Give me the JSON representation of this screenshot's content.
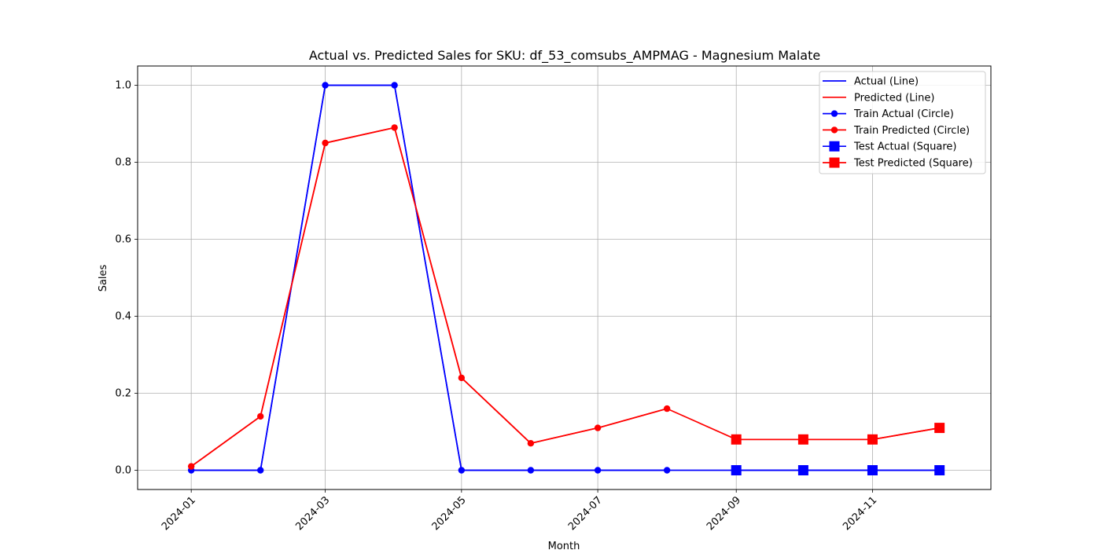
{
  "chart_data": {
    "type": "line",
    "title": "Actual vs. Predicted Sales for SKU: df_53_comsubs_AMPMAG - Magnesium Malate",
    "xlabel": "Month",
    "ylabel": "Sales",
    "x": [
      "2024-01",
      "2024-02",
      "2024-03",
      "2024-04",
      "2024-05",
      "2024-06",
      "2024-07",
      "2024-08",
      "2024-09",
      "2024-10",
      "2024-11",
      "2024-12"
    ],
    "x_ticks": [
      "2024-01",
      "2024-03",
      "2024-05",
      "2024-07",
      "2024-09",
      "2024-11"
    ],
    "y_ticks": [
      "0.0",
      "0.2",
      "0.4",
      "0.6",
      "0.8",
      "1.0"
    ],
    "ylim": [
      -0.05,
      1.05
    ],
    "grid": true,
    "legend_position": "top-right",
    "series": [
      {
        "name": "Actual (Line)",
        "color": "#0000ff",
        "marker": "none",
        "values": [
          0,
          0,
          1,
          1,
          0,
          0,
          0,
          0,
          0,
          0,
          0,
          0
        ]
      },
      {
        "name": "Predicted (Line)",
        "color": "#ff0000",
        "marker": "none",
        "values": [
          0.01,
          0.14,
          0.85,
          0.89,
          0.24,
          0.07,
          0.11,
          0.16,
          0.08,
          0.08,
          0.08,
          0.11
        ]
      },
      {
        "name": "Train Actual (Circle)",
        "color": "#0000ff",
        "marker": "circle",
        "x": [
          "2024-01",
          "2024-02",
          "2024-03",
          "2024-04",
          "2024-05",
          "2024-06",
          "2024-07",
          "2024-08"
        ],
        "values": [
          0,
          0,
          1,
          1,
          0,
          0,
          0,
          0
        ]
      },
      {
        "name": "Train Predicted (Circle)",
        "color": "#ff0000",
        "marker": "circle",
        "x": [
          "2024-01",
          "2024-02",
          "2024-03",
          "2024-04",
          "2024-05",
          "2024-06",
          "2024-07",
          "2024-08"
        ],
        "values": [
          0.01,
          0.14,
          0.85,
          0.89,
          0.24,
          0.07,
          0.11,
          0.16
        ]
      },
      {
        "name": "Test Actual (Square)",
        "color": "#0000ff",
        "marker": "square",
        "x": [
          "2024-09",
          "2024-10",
          "2024-11",
          "2024-12"
        ],
        "values": [
          0,
          0,
          0,
          0
        ]
      },
      {
        "name": "Test Predicted (Square)",
        "color": "#ff0000",
        "marker": "square",
        "x": [
          "2024-09",
          "2024-10",
          "2024-11",
          "2024-12"
        ],
        "values": [
          0.08,
          0.08,
          0.08,
          0.11
        ]
      }
    ]
  }
}
